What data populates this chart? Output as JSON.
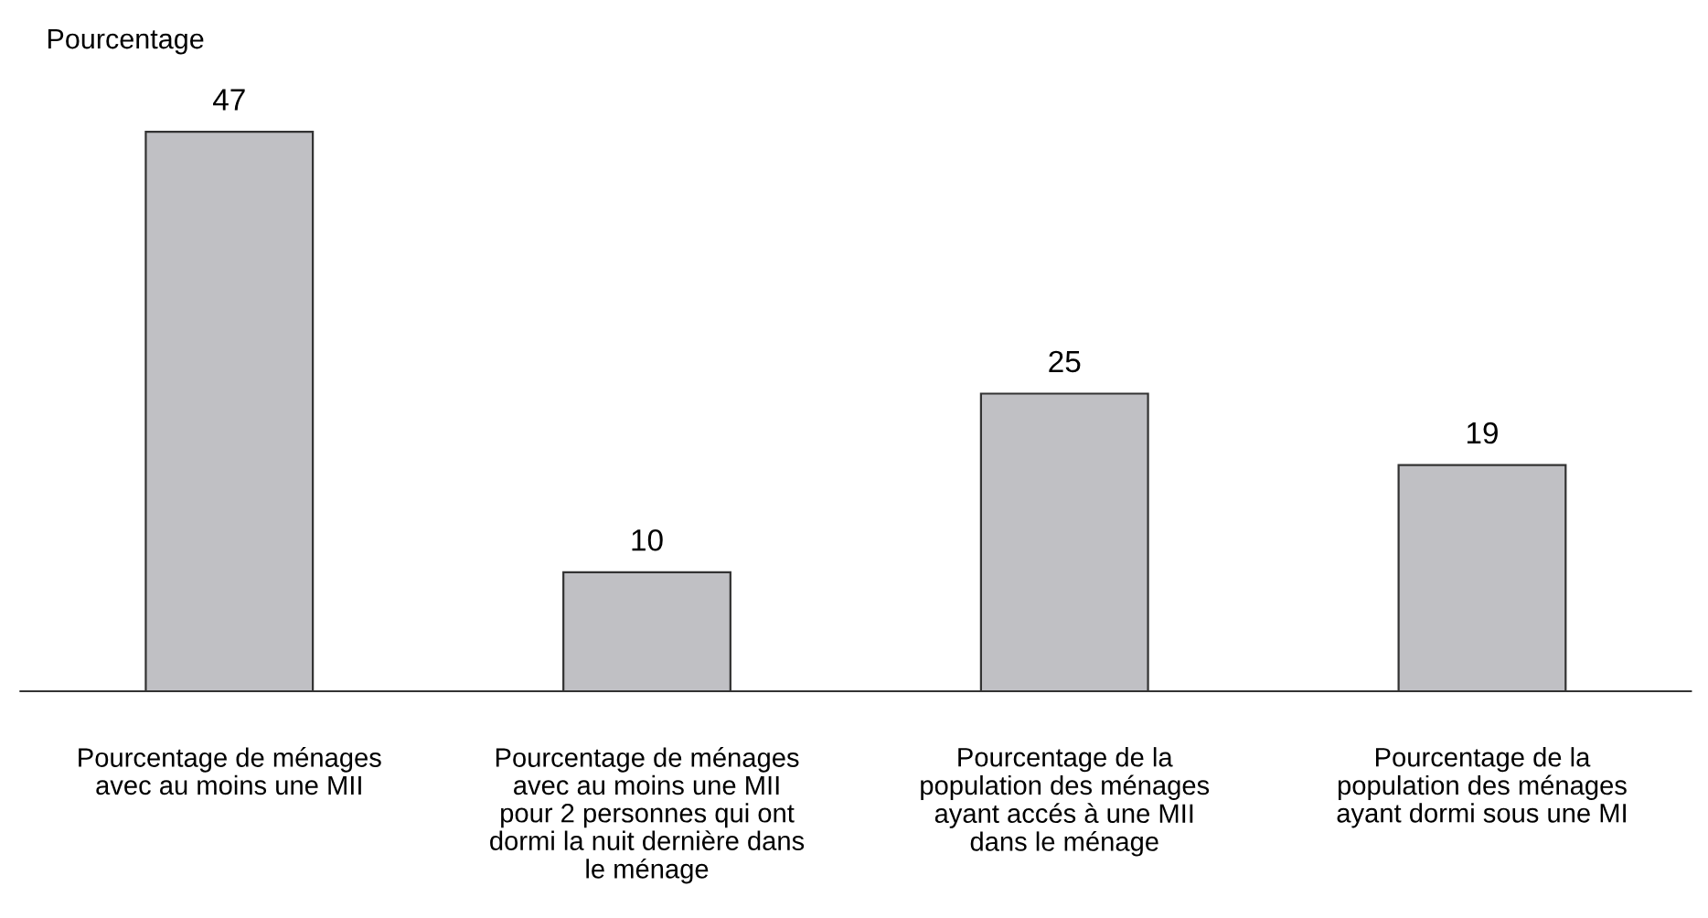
{
  "chart_data": {
    "type": "bar",
    "ylabel": "Pourcentage",
    "categories": [
      "Pourcentage de ménages\navec au moins une MII",
      "Pourcentage de ménages\navec au moins une MII\npour 2 personnes qui ont\ndormi la nuit dernière dans\nle ménage",
      "Pourcentage de la\npopulation des ménages\nayant accés à une MII\ndans le ménage",
      "Pourcentage de la\npopulation des ménages\nayant dormi sous une MI"
    ],
    "values": [
      47,
      10,
      25,
      19
    ],
    "color": "#c0c0c4",
    "data_labels": true,
    "grid": false,
    "legend": false
  }
}
